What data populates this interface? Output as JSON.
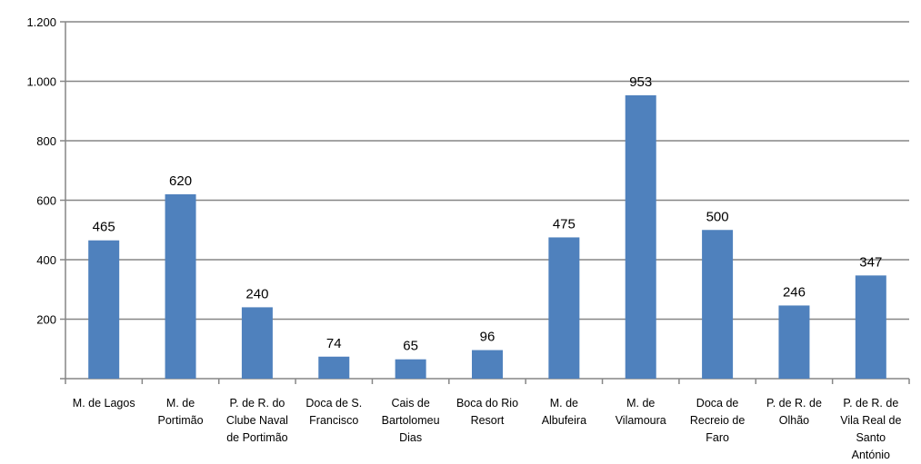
{
  "chart_data": {
    "type": "bar",
    "categories": [
      [
        "M. de Lagos"
      ],
      [
        "M. de",
        "Portimão"
      ],
      [
        "P. de R. do",
        "Clube Naval",
        "de Portimão"
      ],
      [
        "Doca de S.",
        "Francisco"
      ],
      [
        "Cais de",
        "Bartolomeu",
        "Dias"
      ],
      [
        "Boca do Rio",
        "Resort"
      ],
      [
        "M. de",
        "Albufeira"
      ],
      [
        "M. de",
        "Vilamoura"
      ],
      [
        "Doca de",
        "Recreio de",
        "Faro"
      ],
      [
        "P. de R. de",
        "Olhão"
      ],
      [
        "P. de R. de",
        "Vila Real de",
        "Santo",
        "António"
      ]
    ],
    "values": [
      465,
      620,
      240,
      74,
      65,
      96,
      475,
      953,
      500,
      246,
      347
    ],
    "data_labels": [
      "465",
      "620",
      "240",
      "74",
      "65",
      "96",
      "475",
      "953",
      "500",
      "246",
      "347"
    ],
    "yticks": [
      200,
      400,
      600,
      800,
      1000,
      1200
    ],
    "ytick_labels": [
      "200",
      "400",
      "600",
      "800",
      "1.000",
      "1.200"
    ],
    "ylim": [
      0,
      1200
    ],
    "title": "",
    "xlabel": "",
    "ylabel": "",
    "grid": true,
    "legend": "none",
    "bar_color": "#4f81bd",
    "grid_color": "#868686"
  }
}
